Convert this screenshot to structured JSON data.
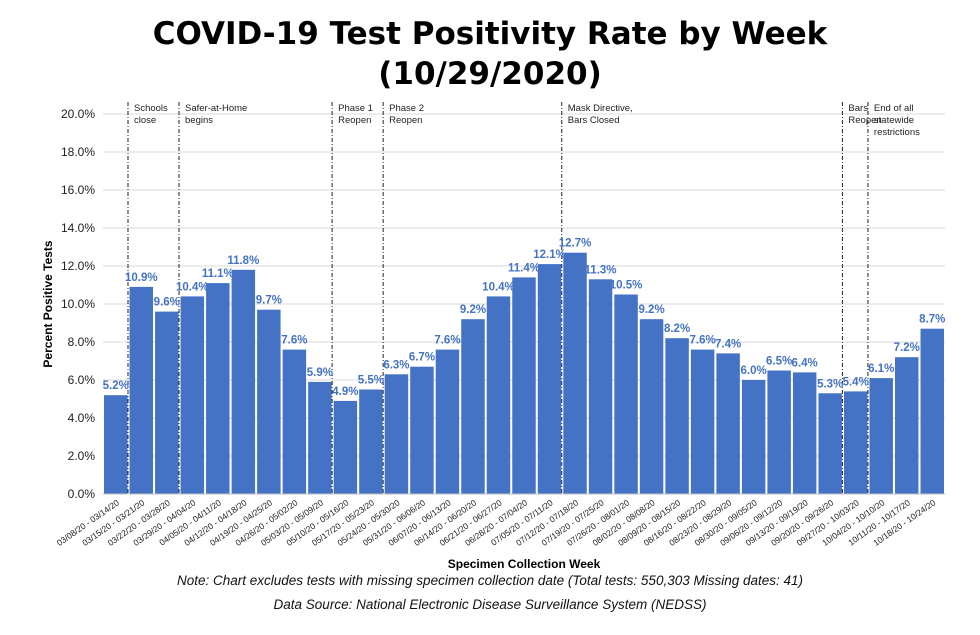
{
  "chart_data": {
    "type": "bar",
    "title_lines": [
      "COVID-19 Test Positivity Rate by Week",
      "(10/29/2020)"
    ],
    "xlabel": "Specimen Collection Week",
    "ylabel": "Percent Positive Tests",
    "ylim": [
      0,
      20
    ],
    "yticks": [
      "0.0%",
      "2.0%",
      "4.0%",
      "6.0%",
      "8.0%",
      "10.0%",
      "12.0%",
      "14.0%",
      "16.0%",
      "18.0%",
      "20.0%"
    ],
    "grid": true,
    "bar_color": "#4472C4",
    "label_color": "#4472C4",
    "categories": [
      "03/08/20 - 03/14/20",
      "03/15/20 - 03/21/20",
      "03/22/20 - 03/28/20",
      "03/29/20 - 04/04/20",
      "04/05/20 - 04/11/20",
      "04/12/20 - 04/18/20",
      "04/19/20 - 04/25/20",
      "04/26/20 - 05/02/20",
      "05/03/20 - 05/09/20",
      "05/10/20 - 05/16/20",
      "05/17/20 - 05/23/20",
      "05/24/20 - 05/30/20",
      "05/31/20 - 06/06/20",
      "06/07/20 - 06/13/20",
      "06/14/20 - 06/20/20",
      "06/21/20 - 06/27/20",
      "06/28/20 - 07/04/20",
      "07/05/20 - 07/11/20",
      "07/12/20 - 07/18/20",
      "07/19/20 - 07/25/20",
      "07/26/20 - 08/01/20",
      "08/02/20 - 08/08/20",
      "08/09/20 - 08/15/20",
      "08/16/20 - 08/22/20",
      "08/23/20 - 08/29/20",
      "08/30/20 - 09/05/20",
      "09/06/20 - 09/12/20",
      "09/13/20 - 09/19/20",
      "09/20/20 - 09/26/20",
      "09/27/20 - 10/03/20",
      "10/04/20 - 10/10/20",
      "10/11/20 - 10/17/20",
      "10/18/20 - 10/24/20"
    ],
    "values": [
      5.2,
      10.9,
      9.6,
      10.4,
      11.1,
      11.8,
      9.7,
      7.6,
      5.9,
      4.9,
      5.5,
      6.3,
      6.7,
      7.6,
      9.2,
      10.4,
      11.4,
      12.1,
      12.7,
      11.3,
      10.5,
      9.2,
      8.2,
      7.6,
      7.4,
      6.0,
      6.5,
      6.4,
      5.3,
      5.4,
      6.1,
      7.2,
      8.7
    ],
    "data_labels": [
      "5.2%",
      "10.9%",
      "9.6%",
      "10.4%",
      "11.1%",
      "11.8%",
      "9.7%",
      "7.6%",
      "5.9%",
      "4.9%",
      "5.5%",
      "6.3%",
      "6.7%",
      "7.6%",
      "9.2%",
      "10.4%",
      "11.4%",
      "12.1%",
      "12.7%",
      "11.3%",
      "10.5%",
      "9.2%",
      "8.2%",
      "7.6%",
      "7.4%",
      "6.0%",
      "6.5%",
      "6.4%",
      "5.3%",
      "5.4%",
      "6.1%",
      "7.2%",
      "8.7%"
    ],
    "annotations": [
      {
        "after_index": 0,
        "lines": [
          "Schools",
          "close"
        ]
      },
      {
        "after_index": 2,
        "lines": [
          "Safer-at-Home",
          "begins"
        ]
      },
      {
        "after_index": 8,
        "lines": [
          "Phase 1",
          "Reopen"
        ]
      },
      {
        "after_index": 10,
        "lines": [
          "Phase 2",
          "Reopen"
        ]
      },
      {
        "after_index": 17,
        "lines": [
          "Mask Directive,",
          "Bars Closed"
        ]
      },
      {
        "after_index": 28,
        "lines": [
          "Bars",
          "Reopen"
        ]
      },
      {
        "after_index": 29,
        "lines": [
          "End of all",
          "statewide",
          "restrictions"
        ]
      }
    ]
  },
  "notes": {
    "line1": "Note: Chart excludes tests with missing specimen collection date (Total tests: 550,303   Missing dates: 41)",
    "line2": "Data Source: National Electronic Disease Surveillance System (NEDSS)"
  }
}
